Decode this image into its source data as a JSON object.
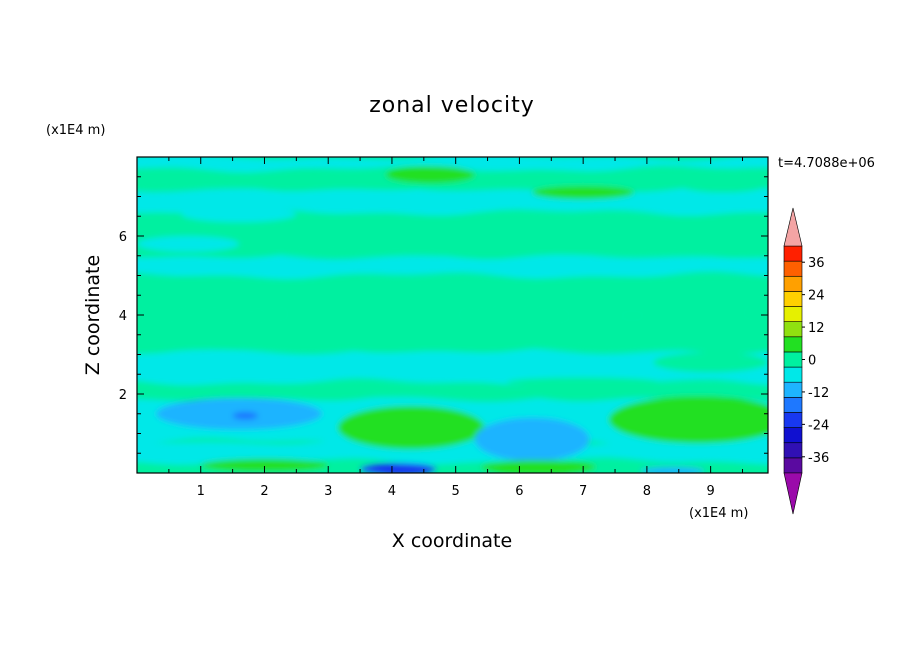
{
  "chart_data": {
    "type": "heatmap",
    "title": "zonal velocity",
    "xlabel": "X coordinate",
    "ylabel": "Z coordinate",
    "x_unit": "(x1E4 m)",
    "y_unit": "(x1E4 m)",
    "time_label": "t=4.7088e+06",
    "xlim": [
      0,
      9.9
    ],
    "ylim": [
      0,
      8
    ],
    "x_ticks": [
      "1",
      "2",
      "3",
      "4",
      "5",
      "6",
      "7",
      "8",
      "9"
    ],
    "y_ticks": [
      "2",
      "4",
      "6"
    ],
    "colorbar": {
      "levels": [
        -42,
        -36,
        -30,
        -24,
        -18,
        -12,
        -6,
        0,
        6,
        12,
        18,
        24,
        30,
        36,
        42
      ],
      "labels": [
        "36",
        "24",
        "12",
        "0",
        "-12",
        "-24",
        "-36"
      ],
      "colors": [
        "#5a0aa0",
        "#3010b4",
        "#1010d0",
        "#1838f0",
        "#1e78ff",
        "#1eb4ff",
        "#00e8e8",
        "#00f0a0",
        "#22e022",
        "#90e010",
        "#e6f000",
        "#ffd000",
        "#ffa000",
        "#ff6000",
        "#ff2000"
      ],
      "under_color": "#9a0aaa",
      "over_color": "#f4a4a4"
    },
    "bands": [
      {
        "z": [
          0.0,
          0.05
        ],
        "value": 4
      },
      {
        "z": [
          0.05,
          0.3
        ],
        "value": 2
      },
      {
        "z": [
          0.3,
          0.8
        ],
        "value": -4
      },
      {
        "z": [
          0.8,
          1.9
        ],
        "value": -2
      },
      {
        "z": [
          1.9,
          2.3
        ],
        "value": 2
      },
      {
        "z": [
          2.3,
          3.1
        ],
        "value": -1
      },
      {
        "z": [
          3.1,
          4.0
        ],
        "value": 1
      },
      {
        "z": [
          4.0,
          5.0
        ],
        "value": 2
      },
      {
        "z": [
          5.0,
          5.5
        ],
        "value": -1
      },
      {
        "z": [
          5.5,
          6.6
        ],
        "value": 2
      },
      {
        "z": [
          6.6,
          7.2
        ],
        "value": -2
      },
      {
        "z": [
          7.2,
          7.7
        ],
        "value": 3
      },
      {
        "z": [
          7.7,
          8.0
        ],
        "value": -2
      }
    ],
    "features": [
      {
        "x": 4.3,
        "z": 1.15,
        "rx": 1.15,
        "rz": 0.55,
        "value": 7
      },
      {
        "x": 4.3,
        "z": 1.15,
        "rx": 0.6,
        "rz": 0.3,
        "value": 11
      },
      {
        "x": 8.8,
        "z": 1.35,
        "rx": 1.4,
        "rz": 0.6,
        "value": 6
      },
      {
        "x": 1.6,
        "z": 1.5,
        "rx": 1.3,
        "rz": 0.4,
        "value": -7
      },
      {
        "x": 1.7,
        "z": 1.45,
        "rx": 0.2,
        "rz": 0.1,
        "value": -17
      },
      {
        "x": 6.2,
        "z": 0.85,
        "rx": 0.9,
        "rz": 0.55,
        "value": -8
      },
      {
        "x": 4.1,
        "z": 0.1,
        "rx": 0.6,
        "rz": 0.15,
        "value": -20
      },
      {
        "x": 6.3,
        "z": 0.15,
        "rx": 0.9,
        "rz": 0.18,
        "value": 8
      },
      {
        "x": 2.0,
        "z": 0.2,
        "rx": 1.0,
        "rz": 0.16,
        "value": 7
      },
      {
        "x": 8.4,
        "z": 0.05,
        "rx": 0.5,
        "rz": 0.1,
        "value": -10
      },
      {
        "x": 2.5,
        "z": 2.1,
        "rx": 0.9,
        "rz": 0.15,
        "value": 4
      },
      {
        "x": 7.0,
        "z": 2.3,
        "rx": 1.2,
        "rz": 0.12,
        "value": 5
      },
      {
        "x": 9.0,
        "z": 2.8,
        "rx": 0.9,
        "rz": 0.25,
        "value": 3
      },
      {
        "x": 0.8,
        "z": 5.8,
        "rx": 0.8,
        "rz": 0.2,
        "value": -2
      },
      {
        "x": 4.6,
        "z": 7.55,
        "rx": 0.7,
        "rz": 0.22,
        "value": 8
      },
      {
        "x": 7.0,
        "z": 7.1,
        "rx": 0.8,
        "rz": 0.17,
        "value": 7
      },
      {
        "x": 9.2,
        "z": 7.3,
        "rx": 0.7,
        "rz": 0.2,
        "value": 5
      },
      {
        "x": 1.6,
        "z": 6.55,
        "rx": 0.9,
        "rz": 0.2,
        "value": -3
      }
    ]
  }
}
